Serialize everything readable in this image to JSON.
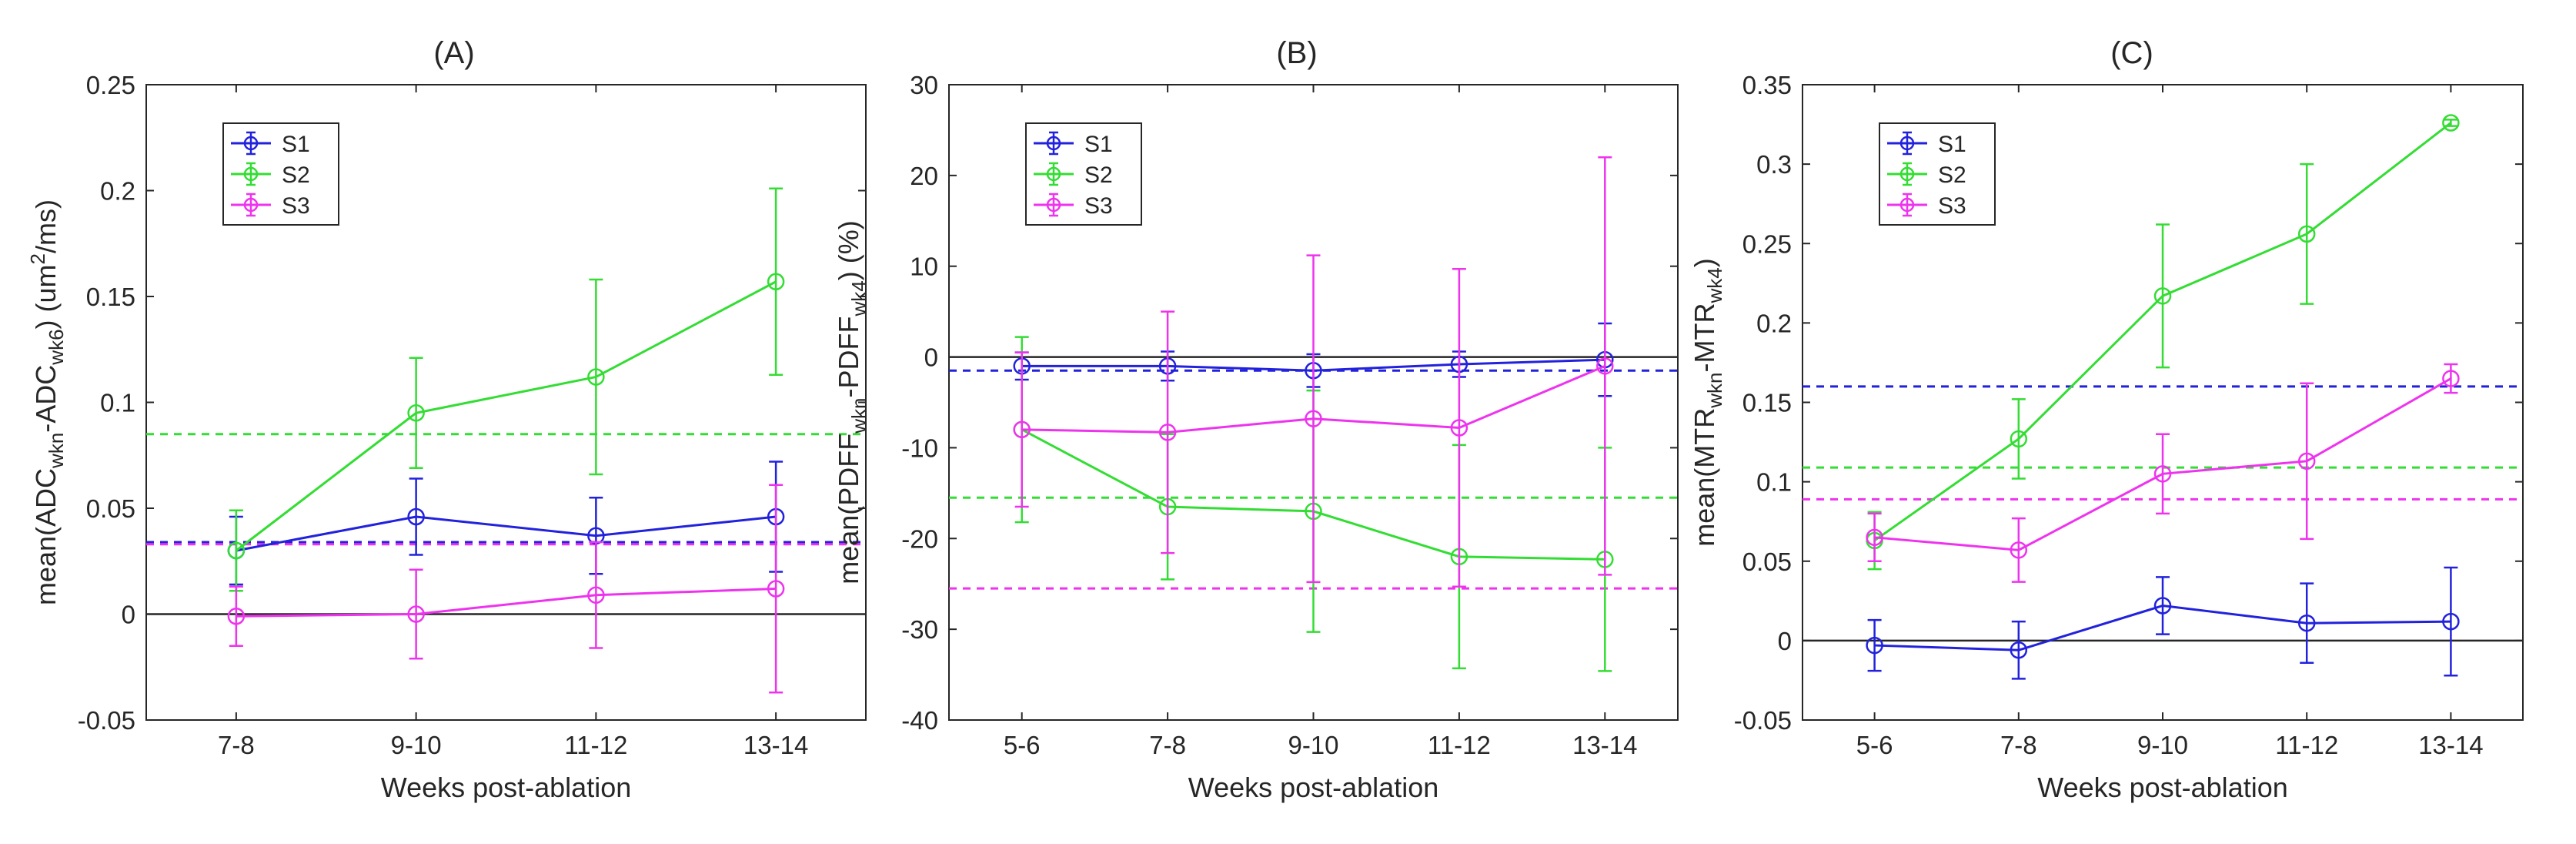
{
  "figure": {
    "background": "#ffffff"
  },
  "chart_data": [
    {
      "type": "line",
      "panel_label": "(A)",
      "xlabel": "Weeks post-ablation",
      "ylabel": {
        "parts": [
          {
            "t": "mean(ADC",
            "s": "n"
          },
          {
            "t": "wkn",
            "s": "sub"
          },
          {
            "t": "-ADC",
            "s": "n"
          },
          {
            "t": "wk6",
            "s": "sub"
          },
          {
            "t": ") (um",
            "s": "n"
          },
          {
            "t": "2",
            "s": "sup"
          },
          {
            "t": "/ms)",
            "s": "n"
          }
        ]
      },
      "categories": [
        "7-8",
        "9-10",
        "11-12",
        "13-14"
      ],
      "ylim": [
        -0.05,
        0.25
      ],
      "yticks": [
        -0.05,
        0,
        0.05,
        0.1,
        0.15,
        0.2,
        0.25
      ],
      "ytick_labels": [
        "-0.05",
        "0",
        "0.05",
        "0.1",
        "0.15",
        "0.2",
        "0.25"
      ],
      "series": [
        {
          "name": "S1",
          "color": "#2222dd",
          "values": [
            0.03,
            0.046,
            0.037,
            0.046
          ],
          "err": [
            0.016,
            0.018,
            0.018,
            0.026
          ]
        },
        {
          "name": "S2",
          "color": "#33dd33",
          "values": [
            0.03,
            0.095,
            0.112,
            0.157
          ],
          "err": [
            0.019,
            0.026,
            0.046,
            0.044
          ]
        },
        {
          "name": "S3",
          "color": "#ee33ee",
          "values": [
            -0.001,
            0.0,
            0.009,
            0.012
          ],
          "err": [
            0.014,
            0.021,
            0.025,
            0.049
          ]
        }
      ],
      "reference_lines": [
        {
          "series": "S1",
          "value": 0.034,
          "style": "dashed",
          "color": "#2222dd"
        },
        {
          "series": "S2",
          "value": 0.085,
          "style": "dashed",
          "color": "#33dd33"
        },
        {
          "series": "S3",
          "value": 0.033,
          "style": "dashed",
          "color": "#ee33ee"
        }
      ],
      "zero_line": true,
      "legend_position": "top-left",
      "grid": false
    },
    {
      "type": "line",
      "panel_label": "(B)",
      "xlabel": "Weeks post-ablation",
      "ylabel": {
        "parts": [
          {
            "t": "mean(PDFF",
            "s": "n"
          },
          {
            "t": "wkn",
            "s": "sub"
          },
          {
            "t": "-PDFF",
            "s": "n"
          },
          {
            "t": "wk4",
            "s": "sub"
          },
          {
            "t": ") (%)",
            "s": "n"
          }
        ]
      },
      "categories": [
        "5-6",
        "7-8",
        "9-10",
        "11-12",
        "13-14"
      ],
      "ylim": [
        -40,
        30
      ],
      "yticks": [
        -40,
        -30,
        -20,
        -10,
        0,
        10,
        20,
        30
      ],
      "ytick_labels": [
        "-40",
        "-30",
        "-20",
        "-10",
        "0",
        "10",
        "20",
        "30"
      ],
      "series": [
        {
          "name": "S1",
          "color": "#2222dd",
          "values": [
            -1.0,
            -1.0,
            -1.5,
            -0.8,
            -0.3
          ],
          "err": [
            1.5,
            1.6,
            1.8,
            1.4,
            4.0
          ]
        },
        {
          "name": "S2",
          "color": "#33dd33",
          "values": [
            -8.0,
            -16.5,
            -17.0,
            -22.0,
            -22.3
          ],
          "err": [
            10.2,
            8.0,
            13.3,
            12.3,
            12.3
          ]
        },
        {
          "name": "S3",
          "color": "#ee33ee",
          "values": [
            -8.0,
            -8.3,
            -6.8,
            -7.8,
            -1.0
          ],
          "err": [
            8.5,
            13.3,
            18.0,
            17.5,
            23.0
          ]
        }
      ],
      "reference_lines": [
        {
          "series": "S1",
          "value": -1.5,
          "style": "dashed",
          "color": "#2222dd"
        },
        {
          "series": "S2",
          "value": -15.5,
          "style": "dashed",
          "color": "#33dd33"
        },
        {
          "series": "S3",
          "value": -25.5,
          "style": "dashed",
          "color": "#ee33ee"
        }
      ],
      "zero_line": true,
      "legend_position": "top-left",
      "grid": false
    },
    {
      "type": "line",
      "panel_label": "(C)",
      "xlabel": "Weeks post-ablation",
      "ylabel": {
        "parts": [
          {
            "t": "mean(MTR",
            "s": "n"
          },
          {
            "t": "wkn",
            "s": "sub"
          },
          {
            "t": "-MTR",
            "s": "n"
          },
          {
            "t": "wk4",
            "s": "sub"
          },
          {
            "t": ")",
            "s": "n"
          }
        ]
      },
      "categories": [
        "5-6",
        "7-8",
        "9-10",
        "11-12",
        "13-14"
      ],
      "ylim": [
        -0.05,
        0.35
      ],
      "yticks": [
        -0.05,
        0,
        0.05,
        0.1,
        0.15,
        0.2,
        0.25,
        0.3,
        0.35
      ],
      "ytick_labels": [
        "-0.05",
        "0",
        "0.05",
        "0.1",
        "0.15",
        "0.2",
        "0.25",
        "0.3",
        "0.35"
      ],
      "series": [
        {
          "name": "S1",
          "color": "#2222dd",
          "values": [
            -0.003,
            -0.006,
            0.022,
            0.011,
            0.012
          ],
          "err": [
            0.016,
            0.018,
            0.018,
            0.025,
            0.034
          ]
        },
        {
          "name": "S2",
          "color": "#33dd33",
          "values": [
            0.063,
            0.127,
            0.217,
            0.256,
            0.326
          ],
          "err": [
            0.018,
            0.025,
            0.045,
            0.044,
            0.002
          ]
        },
        {
          "name": "S3",
          "color": "#ee33ee",
          "values": [
            0.065,
            0.057,
            0.105,
            0.113,
            0.165
          ],
          "err": [
            0.015,
            0.02,
            0.025,
            0.049,
            0.009
          ]
        }
      ],
      "reference_lines": [
        {
          "series": "S1",
          "value": 0.16,
          "style": "dashed",
          "color": "#2222dd"
        },
        {
          "series": "S2",
          "value": 0.109,
          "style": "dashed",
          "color": "#33dd33"
        },
        {
          "series": "S3",
          "value": 0.089,
          "style": "dashed",
          "color": "#ee33ee"
        }
      ],
      "zero_line": true,
      "legend_position": "top-left",
      "grid": false
    }
  ]
}
